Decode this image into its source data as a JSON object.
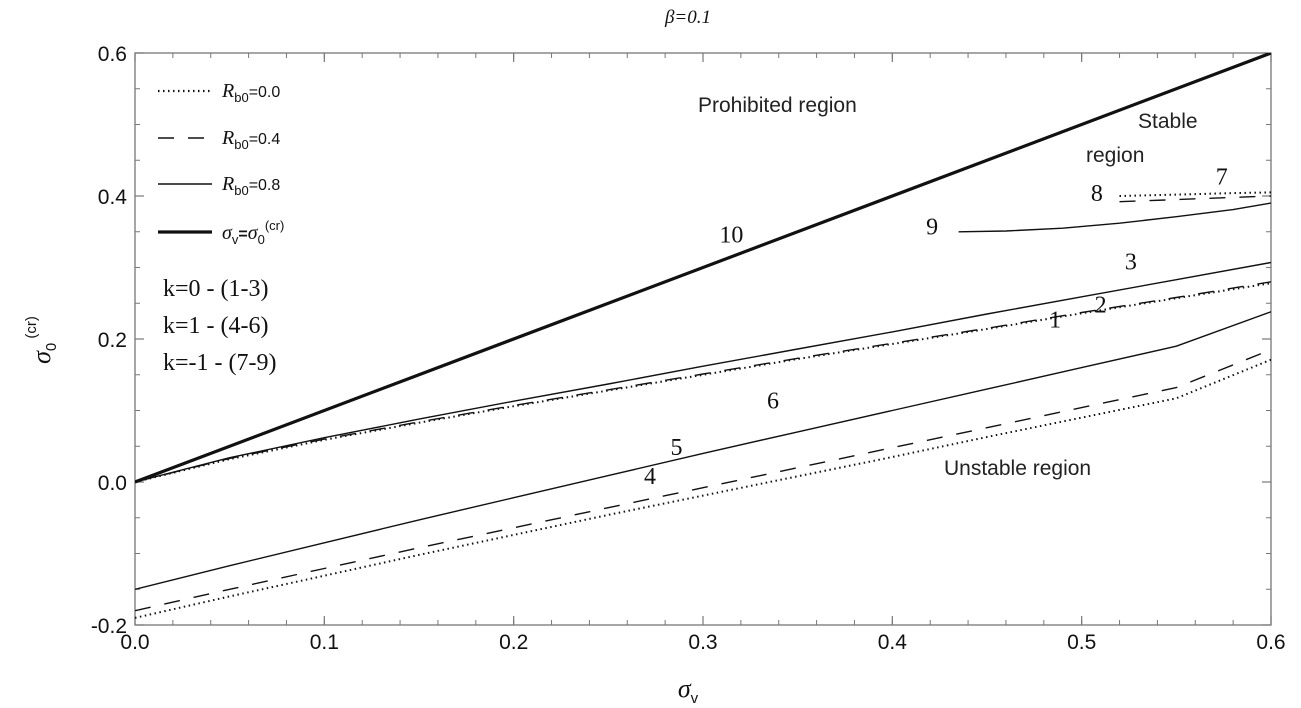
{
  "chart_data": {
    "type": "line",
    "title": "β=0.1",
    "xlabel": "σv",
    "ylabel": "σ0(cr)",
    "xlim": [
      0.0,
      0.6
    ],
    "ylim": [
      -0.2,
      0.6
    ],
    "x_ticks": [
      "0.0",
      "0.1",
      "0.2",
      "0.3",
      "0.4",
      "0.5",
      "0.6"
    ],
    "y_ticks": [
      "-0.2",
      "0.0",
      "0.2",
      "0.4",
      "0.6"
    ],
    "grid": false,
    "legend_placement": "top-left",
    "legend": [
      {
        "style": "dotted",
        "label_symbol": "R",
        "label_sub": "b0",
        "label_value": "=0.0"
      },
      {
        "style": "dashed",
        "label_symbol": "R",
        "label_sub": "b0",
        "label_value": "=0.4"
      },
      {
        "style": "thin",
        "label_symbol": "R",
        "label_sub": "b0",
        "label_value": "=0.8"
      },
      {
        "style": "thick",
        "label_symbol": "σ",
        "label_sub": "v",
        "label_mid": "=",
        "label_symbol2": "σ",
        "label_sub2": "0",
        "label_sup2": "(cr)"
      }
    ],
    "k_groups": [
      "k=0 - (1-3)",
      "k=1 - (4-6)",
      "k=-1 - (7-9)"
    ],
    "regions": {
      "prohibited": "Prohibited region",
      "stable_line1": "Stable",
      "stable_line2": "region",
      "unstable": "Unstable region"
    },
    "series": [
      {
        "id": "1",
        "style": "dotted",
        "x": [
          0.0,
          0.05,
          0.1,
          0.15,
          0.2,
          0.25,
          0.3,
          0.35,
          0.4,
          0.45,
          0.5,
          0.55,
          0.6
        ],
        "y": [
          0.0,
          0.032,
          0.059,
          0.083,
          0.106,
          0.128,
          0.15,
          0.172,
          0.193,
          0.214,
          0.236,
          0.257,
          0.278
        ]
      },
      {
        "id": "2",
        "style": "dashed",
        "x": [
          0.0,
          0.05,
          0.1,
          0.15,
          0.2,
          0.25,
          0.3,
          0.35,
          0.4,
          0.45,
          0.5,
          0.55,
          0.6
        ],
        "y": [
          0.0,
          0.033,
          0.06,
          0.084,
          0.107,
          0.129,
          0.151,
          0.173,
          0.194,
          0.215,
          0.237,
          0.258,
          0.28
        ]
      },
      {
        "id": "3",
        "style": "thin",
        "x": [
          0.0,
          0.05,
          0.1,
          0.15,
          0.2,
          0.25,
          0.3,
          0.35,
          0.4,
          0.45,
          0.5,
          0.55,
          0.6
        ],
        "y": [
          0.0,
          0.034,
          0.062,
          0.088,
          0.113,
          0.137,
          0.162,
          0.186,
          0.21,
          0.235,
          0.259,
          0.283,
          0.307
        ]
      },
      {
        "id": "4",
        "style": "dotted",
        "x": [
          0.0,
          0.05,
          0.1,
          0.15,
          0.2,
          0.25,
          0.3,
          0.35,
          0.4,
          0.45,
          0.5,
          0.55,
          0.6
        ],
        "y": [
          -0.19,
          -0.16,
          -0.131,
          -0.102,
          -0.074,
          -0.046,
          -0.019,
          0.008,
          0.035,
          0.063,
          0.09,
          0.117,
          0.171
        ]
      },
      {
        "id": "5",
        "style": "dashed",
        "x": [
          0.0,
          0.05,
          0.1,
          0.15,
          0.2,
          0.25,
          0.3,
          0.35,
          0.4,
          0.45,
          0.5,
          0.55,
          0.6
        ],
        "y": [
          -0.18,
          -0.15,
          -0.121,
          -0.092,
          -0.064,
          -0.036,
          -0.008,
          0.02,
          0.048,
          0.076,
          0.104,
          0.132,
          0.185
        ]
      },
      {
        "id": "6",
        "style": "thin",
        "x": [
          0.0,
          0.05,
          0.1,
          0.15,
          0.2,
          0.25,
          0.3,
          0.35,
          0.4,
          0.45,
          0.5,
          0.55,
          0.6
        ],
        "y": [
          -0.15,
          -0.117,
          -0.085,
          -0.053,
          -0.022,
          0.009,
          0.04,
          0.07,
          0.1,
          0.13,
          0.16,
          0.19,
          0.238
        ]
      },
      {
        "id": "7",
        "style": "dotted",
        "x": [
          0.52,
          0.55,
          0.58,
          0.6
        ],
        "y": [
          0.4,
          0.402,
          0.404,
          0.405
        ]
      },
      {
        "id": "8",
        "style": "dashed",
        "x": [
          0.52,
          0.55,
          0.58,
          0.6
        ],
        "y": [
          0.392,
          0.395,
          0.398,
          0.4
        ]
      },
      {
        "id": "9",
        "style": "thin",
        "x": [
          0.435,
          0.46,
          0.49,
          0.52,
          0.55,
          0.58,
          0.6
        ],
        "y": [
          0.35,
          0.351,
          0.355,
          0.362,
          0.371,
          0.381,
          0.39
        ]
      },
      {
        "id": "10",
        "style": "thick",
        "x": [
          0.0,
          0.6
        ],
        "y": [
          0.0,
          0.6
        ]
      }
    ],
    "curve_labels": [
      {
        "text": "1",
        "x": 0.486,
        "y": 0.216
      },
      {
        "text": "2",
        "x": 0.51,
        "y": 0.237
      },
      {
        "text": "3",
        "x": 0.526,
        "y": 0.297
      },
      {
        "text": "4",
        "x": 0.272,
        "y": -0.003
      },
      {
        "text": "5",
        "x": 0.286,
        "y": 0.038
      },
      {
        "text": "6",
        "x": 0.337,
        "y": 0.103
      },
      {
        "text": "7",
        "x": 0.574,
        "y": 0.416
      },
      {
        "text": "8",
        "x": 0.508,
        "y": 0.393
      },
      {
        "text": "9",
        "x": 0.421,
        "y": 0.346
      },
      {
        "text": "10",
        "x": 0.315,
        "y": 0.335
      }
    ],
    "colors": {
      "lines": "#111111",
      "background": "#ffffff"
    }
  }
}
